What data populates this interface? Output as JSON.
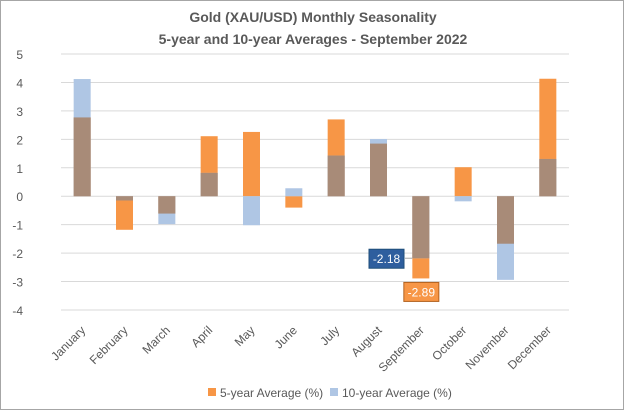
{
  "chart_data": {
    "type": "bar",
    "title": "Gold (XAU/USD) Monthly Seasonality",
    "subtitle": "5-year and 10-year Averages - September 2022",
    "categories": [
      "January",
      "February",
      "March",
      "April",
      "May",
      "June",
      "July",
      "August",
      "September",
      "October",
      "November",
      "December"
    ],
    "series": [
      {
        "name": "5-year Average (%)",
        "color": "#F79646",
        "values": [
          2.77,
          -1.18,
          -0.61,
          2.11,
          2.26,
          -0.4,
          2.7,
          1.85,
          -2.89,
          1.02,
          -1.67,
          4.13
        ]
      },
      {
        "name": "10-year Average (%)",
        "color": "#AFC6E4",
        "values": [
          4.12,
          -0.15,
          -0.98,
          0.82,
          -1.02,
          0.28,
          1.43,
          2.01,
          -2.18,
          -0.18,
          -2.94,
          1.31
        ]
      }
    ],
    "overlap_color": "#A88B78",
    "ylim": [
      -4,
      5
    ],
    "yticks": [
      5,
      4,
      3,
      2,
      1,
      0,
      -1,
      -2,
      -3,
      -4
    ],
    "grid": true,
    "legend": "bottom",
    "annotations": [
      {
        "category": "September",
        "series": "10-year Average (%)",
        "text": "-2.18",
        "color": "#2E5E9E"
      },
      {
        "category": "September",
        "series": "5-year Average (%)",
        "text": "-2.89",
        "color": "#F79646"
      }
    ]
  }
}
